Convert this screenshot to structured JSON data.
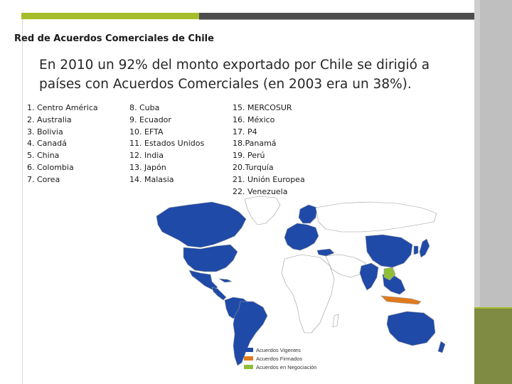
{
  "slide": {
    "title": "Red de Acuerdos Comerciales de Chile",
    "intro": "En 2010 un 92% del monto exportado por Chile se dirigió a países con Acuerdos Comerciales (en 2003 era un 38%).",
    "columns": [
      [
        "1. Centro América",
        "2. Australia",
        "3. Bolivia",
        "4. Canadá",
        "5. China",
        "6. Colombia",
        "7. Corea"
      ],
      [
        "8. Cuba",
        "9. Ecuador",
        "10. EFTA",
        "11. Estados Unidos",
        "12. India",
        "13. Japón",
        "14. Malasia"
      ],
      [
        "15. MERCOSUR",
        "16. México",
        "17. P4",
        "18.Panamá",
        "19. Perú",
        "20.Turquía",
        "21. Unión Europea",
        "22. Venezuela"
      ]
    ]
  },
  "map": {
    "legend": [
      {
        "label": "Acuerdos Vigentes",
        "color": "#1f4aa8"
      },
      {
        "label": "Acuerdos Firmados",
        "color": "#e07a1f"
      },
      {
        "label": "Acuerdos en Negociación",
        "color": "#8fbf3a"
      }
    ],
    "colors": {
      "vigente": "#1f4aa8",
      "firmado": "#e07a1f",
      "negociacion": "#8fbf3a",
      "sin_acuerdo": "#ffffff",
      "borde": "#9a9a9a"
    }
  },
  "theme": {
    "accent_green": "#a6bc2a",
    "accent_dark": "#4d4d4d",
    "panel_olive": "#7f8a43"
  }
}
